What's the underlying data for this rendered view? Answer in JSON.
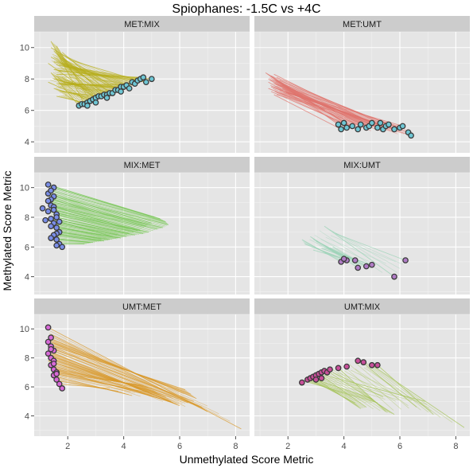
{
  "chart_data": {
    "type": "scatter",
    "title": "Spiophanes: -1.5C vs +4C",
    "xlabel": "Unmethylated Score Metric",
    "ylabel": "Methylated Score Metric",
    "xlim": [
      0.8,
      8.5
    ],
    "x_ticks": [
      2,
      4,
      6,
      8
    ],
    "rows": [
      {
        "ylim": [
          3.3,
          11.0
        ],
        "y_ticks": [
          4,
          6,
          8,
          10
        ]
      },
      {
        "ylim": [
          2.8,
          11.0
        ],
        "y_ticks": [
          4,
          6,
          8,
          10
        ]
      },
      {
        "ylim": [
          2.6,
          11.0
        ],
        "y_ticks": [
          4,
          6,
          8,
          10
        ]
      }
    ],
    "grid": true,
    "facets": [
      {
        "label": "MET:MIX",
        "row": 0,
        "col": 0,
        "segment_color": "#b8b01f",
        "point_color": "#6ec6d4",
        "segments": [
          [
            1.4,
            10.4,
            2.6,
            6.4
          ],
          [
            1.6,
            10.1,
            2.8,
            6.6
          ],
          [
            1.5,
            9.8,
            3.0,
            6.8
          ],
          [
            1.7,
            9.6,
            3.3,
            7.0
          ],
          [
            1.4,
            9.4,
            3.5,
            7.2
          ],
          [
            1.8,
            9.3,
            3.7,
            7.3
          ],
          [
            1.5,
            9.1,
            3.9,
            7.5
          ],
          [
            1.9,
            9.0,
            4.1,
            7.6
          ],
          [
            1.6,
            8.9,
            4.3,
            7.8
          ],
          [
            2.0,
            8.8,
            4.6,
            8.0
          ],
          [
            1.5,
            8.6,
            4.8,
            7.8
          ],
          [
            1.7,
            8.5,
            5.0,
            8.0
          ],
          [
            1.4,
            8.4,
            2.4,
            6.3
          ],
          [
            1.6,
            8.2,
            2.7,
            6.5
          ],
          [
            1.8,
            8.1,
            3.1,
            6.9
          ],
          [
            1.5,
            8.0,
            3.4,
            7.0
          ],
          [
            1.7,
            7.9,
            3.6,
            7.1
          ],
          [
            1.9,
            7.8,
            3.8,
            7.4
          ],
          [
            1.6,
            7.7,
            4.0,
            7.5
          ],
          [
            1.8,
            7.6,
            4.4,
            7.7
          ],
          [
            1.5,
            7.4,
            2.9,
            6.7
          ],
          [
            1.7,
            7.2,
            3.2,
            6.9
          ],
          [
            1.9,
            7.0,
            2.5,
            6.4
          ],
          [
            1.6,
            6.9,
            2.6,
            6.5
          ],
          [
            1.8,
            9.7,
            3.5,
            7.1
          ],
          [
            1.3,
            9.0,
            3.0,
            6.8
          ],
          [
            2.1,
            9.2,
            4.5,
            7.9
          ],
          [
            1.4,
            10.0,
            3.8,
            7.3
          ],
          [
            1.6,
            8.3,
            4.7,
            8.1
          ],
          [
            1.3,
            7.8,
            2.8,
            6.6
          ]
        ],
        "points": [
          [
            2.4,
            6.3
          ],
          [
            2.5,
            6.4
          ],
          [
            2.6,
            6.4
          ],
          [
            2.7,
            6.5
          ],
          [
            2.8,
            6.6
          ],
          [
            2.9,
            6.7
          ],
          [
            3.0,
            6.8
          ],
          [
            3.1,
            6.9
          ],
          [
            3.2,
            6.9
          ],
          [
            3.3,
            7.0
          ],
          [
            3.4,
            7.0
          ],
          [
            3.5,
            7.1
          ],
          [
            3.6,
            7.1
          ],
          [
            3.7,
            7.3
          ],
          [
            3.8,
            7.3
          ],
          [
            3.9,
            7.5
          ],
          [
            4.0,
            7.5
          ],
          [
            4.1,
            7.6
          ],
          [
            4.3,
            7.8
          ],
          [
            4.4,
            7.7
          ],
          [
            4.5,
            7.9
          ],
          [
            4.6,
            8.0
          ],
          [
            4.7,
            8.1
          ],
          [
            4.8,
            7.8
          ],
          [
            5.0,
            8.0
          ],
          [
            2.7,
            6.3
          ],
          [
            3.0,
            6.5
          ],
          [
            3.4,
            6.8
          ],
          [
            3.9,
            7.2
          ],
          [
            4.2,
            7.4
          ]
        ]
      },
      {
        "label": "MET:UMT",
        "row": 0,
        "col": 1,
        "segment_color": "#e0756e",
        "point_color": "#6ec6d4",
        "segments": [
          [
            1.2,
            8.4,
            3.8,
            5.1
          ],
          [
            1.4,
            8.2,
            4.0,
            5.2
          ],
          [
            1.3,
            8.0,
            4.3,
            5.0
          ],
          [
            1.6,
            7.9,
            4.6,
            5.1
          ],
          [
            1.5,
            7.7,
            4.9,
            5.0
          ],
          [
            1.8,
            7.6,
            5.2,
            4.9
          ],
          [
            1.4,
            7.5,
            5.5,
            5.0
          ],
          [
            1.7,
            7.3,
            5.8,
            4.8
          ],
          [
            1.9,
            7.2,
            6.1,
            5.0
          ],
          [
            1.6,
            7.0,
            6.3,
            4.6
          ],
          [
            1.3,
            7.8,
            4.1,
            4.9
          ],
          [
            1.5,
            8.3,
            5.0,
            5.2
          ],
          [
            1.8,
            7.4,
            5.4,
            4.8
          ],
          [
            2.0,
            7.1,
            6.4,
            4.4
          ],
          [
            1.4,
            7.2,
            4.5,
            4.8
          ],
          [
            1.7,
            7.9,
            5.6,
            5.1
          ],
          [
            1.9,
            7.5,
            6.0,
            4.9
          ],
          [
            1.5,
            7.0,
            3.9,
            4.8
          ],
          [
            1.6,
            8.1,
            5.3,
            5.2
          ],
          [
            1.3,
            7.4,
            4.8,
            4.9
          ]
        ],
        "points": [
          [
            3.8,
            5.1
          ],
          [
            4.0,
            5.2
          ],
          [
            4.1,
            4.9
          ],
          [
            4.3,
            5.0
          ],
          [
            4.5,
            4.8
          ],
          [
            4.6,
            5.1
          ],
          [
            4.8,
            4.9
          ],
          [
            4.9,
            5.0
          ],
          [
            5.0,
            5.2
          ],
          [
            5.2,
            4.9
          ],
          [
            5.3,
            5.2
          ],
          [
            5.4,
            4.8
          ],
          [
            5.5,
            5.0
          ],
          [
            5.6,
            5.1
          ],
          [
            5.8,
            4.8
          ],
          [
            6.0,
            4.9
          ],
          [
            6.1,
            5.0
          ],
          [
            6.3,
            4.6
          ],
          [
            6.4,
            4.4
          ],
          [
            3.9,
            4.8
          ]
        ]
      },
      {
        "label": "MIX:MET",
        "row": 1,
        "col": 0,
        "segment_color": "#6ec44a",
        "point_color": "#7a8ee8",
        "segments": [
          [
            1.3,
            10.2,
            5.3,
            7.9
          ],
          [
            1.4,
            9.8,
            5.5,
            7.7
          ],
          [
            1.5,
            9.4,
            5.6,
            7.5
          ],
          [
            1.3,
            9.1,
            5.4,
            7.3
          ],
          [
            1.4,
            8.8,
            5.2,
            7.2
          ],
          [
            1.5,
            8.5,
            4.9,
            7.0
          ],
          [
            1.6,
            8.2,
            4.7,
            6.9
          ],
          [
            1.4,
            7.9,
            4.4,
            6.8
          ],
          [
            1.5,
            7.6,
            4.1,
            6.7
          ],
          [
            1.6,
            7.3,
            3.8,
            6.6
          ],
          [
            1.7,
            7.0,
            3.5,
            6.5
          ],
          [
            1.5,
            6.8,
            3.2,
            6.4
          ],
          [
            1.6,
            6.5,
            2.9,
            6.3
          ],
          [
            1.7,
            6.2,
            2.6,
            6.2
          ],
          [
            1.3,
            9.6,
            5.0,
            7.6
          ],
          [
            1.4,
            9.2,
            4.8,
            7.4
          ],
          [
            1.5,
            8.7,
            4.5,
            7.1
          ],
          [
            1.6,
            8.0,
            4.2,
            6.9
          ],
          [
            1.4,
            7.4,
            3.9,
            6.6
          ],
          [
            1.6,
            6.9,
            3.3,
            6.4
          ],
          [
            1.5,
            10.0,
            5.1,
            8.0
          ],
          [
            1.3,
            8.4,
            4.6,
            7.1
          ],
          [
            1.7,
            7.7,
            3.6,
            6.7
          ],
          [
            1.4,
            6.6,
            2.8,
            6.3
          ]
        ],
        "points": [
          [
            1.3,
            10.2
          ],
          [
            1.5,
            10.0
          ],
          [
            1.3,
            9.6
          ],
          [
            1.4,
            9.8
          ],
          [
            1.5,
            9.4
          ],
          [
            1.4,
            9.2
          ],
          [
            1.3,
            9.1
          ],
          [
            1.4,
            8.8
          ],
          [
            1.5,
            8.7
          ],
          [
            1.5,
            8.5
          ],
          [
            1.3,
            8.4
          ],
          [
            1.6,
            8.2
          ],
          [
            1.6,
            8.0
          ],
          [
            1.4,
            7.9
          ],
          [
            1.7,
            7.7
          ],
          [
            1.5,
            7.6
          ],
          [
            1.4,
            7.4
          ],
          [
            1.6,
            7.3
          ],
          [
            1.7,
            7.0
          ],
          [
            1.6,
            6.9
          ],
          [
            1.5,
            6.8
          ],
          [
            1.4,
            6.6
          ],
          [
            1.6,
            6.5
          ],
          [
            1.7,
            6.2
          ],
          [
            1.8,
            6.0
          ],
          [
            1.1,
            8.6
          ],
          [
            1.2,
            7.8
          ],
          [
            1.6,
            6.1
          ]
        ]
      },
      {
        "label": "MIX:UMT",
        "row": 1,
        "col": 1,
        "segment_color": "#9ad3b6",
        "point_color": "#b07cc6",
        "segments": [
          [
            2.5,
            6.5,
            3.9,
            5.0
          ],
          [
            2.6,
            6.2,
            4.1,
            5.1
          ],
          [
            3.3,
            7.4,
            5.8,
            4.0
          ],
          [
            3.7,
            6.9,
            6.2,
            5.1
          ],
          [
            3.0,
            6.4,
            4.8,
            4.7
          ],
          [
            2.8,
            6.7,
            4.5,
            4.6
          ],
          [
            3.2,
            5.9,
            5.0,
            4.8
          ],
          [
            3.6,
            6.0,
            4.4,
            5.1
          ],
          [
            2.9,
            5.8,
            4.0,
            5.2
          ]
        ],
        "points": [
          [
            3.9,
            5.0
          ],
          [
            4.1,
            5.1
          ],
          [
            4.0,
            5.2
          ],
          [
            4.4,
            5.1
          ],
          [
            4.5,
            4.6
          ],
          [
            4.8,
            4.7
          ],
          [
            5.0,
            4.8
          ],
          [
            5.8,
            4.0
          ],
          [
            6.2,
            5.1
          ]
        ]
      },
      {
        "label": "UMT:MET",
        "row": 2,
        "col": 0,
        "segment_color": "#d99a2b",
        "point_color": "#d86ad8",
        "segments": [
          [
            1.4,
            10.0,
            8.2,
            3.1
          ],
          [
            1.3,
            9.4,
            6.6,
            5.2
          ],
          [
            1.4,
            9.1,
            6.4,
            5.5
          ],
          [
            1.5,
            8.8,
            6.2,
            5.8
          ],
          [
            1.3,
            8.5,
            6.0,
            4.7
          ],
          [
            1.4,
            8.2,
            5.7,
            5.0
          ],
          [
            1.5,
            7.9,
            5.5,
            5.3
          ],
          [
            1.6,
            7.6,
            5.2,
            5.6
          ],
          [
            1.4,
            7.3,
            5.0,
            5.9
          ],
          [
            1.5,
            7.0,
            4.7,
            6.1
          ],
          [
            1.6,
            6.7,
            4.3,
            5.4
          ],
          [
            1.7,
            6.4,
            3.8,
            5.7
          ],
          [
            1.4,
            9.6,
            7.0,
            4.3
          ],
          [
            1.5,
            9.0,
            6.8,
            4.6
          ],
          [
            1.6,
            8.4,
            6.3,
            4.9
          ],
          [
            1.3,
            7.8,
            5.9,
            4.8
          ],
          [
            1.5,
            7.2,
            5.3,
            5.2
          ],
          [
            1.6,
            6.9,
            4.9,
            5.6
          ],
          [
            1.4,
            8.7,
            6.5,
            5.0
          ],
          [
            1.7,
            6.2,
            3.5,
            5.9
          ]
        ],
        "points": [
          [
            1.3,
            10.1
          ],
          [
            1.4,
            9.4
          ],
          [
            1.3,
            9.1
          ],
          [
            1.4,
            8.8
          ],
          [
            1.5,
            8.5
          ],
          [
            1.3,
            8.3
          ],
          [
            1.4,
            8.0
          ],
          [
            1.5,
            7.8
          ],
          [
            1.4,
            7.5
          ],
          [
            1.5,
            7.2
          ],
          [
            1.6,
            7.0
          ],
          [
            1.5,
            6.8
          ],
          [
            1.6,
            6.5
          ],
          [
            1.7,
            6.2
          ],
          [
            1.8,
            5.9
          ],
          [
            1.4,
            8.6
          ],
          [
            1.5,
            7.6
          ],
          [
            1.6,
            6.9
          ]
        ]
      },
      {
        "label": "UMT:MIX",
        "row": 2,
        "col": 1,
        "segment_color": "#a6c45a",
        "point_color": "#c84f9a",
        "segments": [
          [
            5.0,
            7.5,
            8.3,
            3.2
          ],
          [
            4.6,
            7.8,
            6.6,
            4.6
          ],
          [
            3.8,
            7.3,
            5.5,
            4.3
          ],
          [
            3.4,
            7.1,
            5.8,
            4.1
          ],
          [
            3.1,
            6.9,
            4.8,
            4.6
          ],
          [
            2.9,
            6.7,
            4.6,
            4.5
          ],
          [
            2.7,
            6.6,
            4.4,
            4.9
          ],
          [
            2.6,
            6.4,
            5.2,
            4.9
          ],
          [
            3.0,
            6.5,
            5.0,
            5.2
          ],
          [
            3.3,
            6.8,
            6.9,
            5.0
          ],
          [
            5.2,
            7.5,
            7.2,
            4.1
          ],
          [
            3.6,
            7.0,
            5.4,
            5.3
          ]
        ],
        "points": [
          [
            2.5,
            6.3
          ],
          [
            2.7,
            6.5
          ],
          [
            2.8,
            6.6
          ],
          [
            2.9,
            6.7
          ],
          [
            3.0,
            6.8
          ],
          [
            3.1,
            6.9
          ],
          [
            3.2,
            7.0
          ],
          [
            3.3,
            7.1
          ],
          [
            3.4,
            7.0
          ],
          [
            3.5,
            7.2
          ],
          [
            3.8,
            7.3
          ],
          [
            4.1,
            7.4
          ],
          [
            4.5,
            7.8
          ],
          [
            4.7,
            7.7
          ],
          [
            5.0,
            7.5
          ],
          [
            5.2,
            7.5
          ],
          [
            3.0,
            6.5
          ],
          [
            3.2,
            6.6
          ]
        ]
      }
    ]
  }
}
